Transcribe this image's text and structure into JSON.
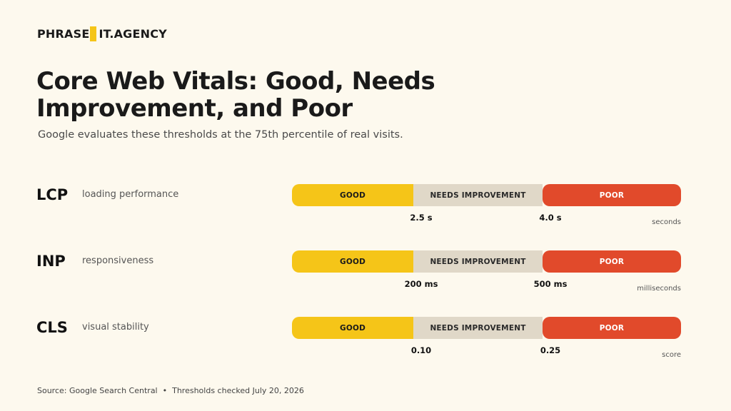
{
  "brand": {
    "name_left": "PHRASE",
    "name_right": "IT.AGENCY",
    "accent_color": "#f5c518"
  },
  "title": "Core Web Vitals: Good, Needs Improvement, and Poor",
  "subtitle": "Google evaluates these thresholds at the 75th percentile of real visits.",
  "segment_labels": {
    "good": "GOOD",
    "needs_improvement": "NEEDS IMPROVEMENT",
    "poor": "POOR"
  },
  "colors": {
    "good": "#f5c518",
    "needs_improvement": "#e0d8c8",
    "poor": "#e14a2b",
    "background": "#fdf9ee"
  },
  "metrics": [
    {
      "abbr": "LCP",
      "description": "loading performance",
      "threshold_good": "2.5 s",
      "threshold_poor": "4.0 s",
      "unit": "seconds"
    },
    {
      "abbr": "INP",
      "description": "responsiveness",
      "threshold_good": "200 ms",
      "threshold_poor": "500 ms",
      "unit": "milliseconds"
    },
    {
      "abbr": "CLS",
      "description": "visual stability",
      "threshold_good": "0.10",
      "threshold_poor": "0.25",
      "unit": "score"
    }
  ],
  "footer": {
    "source": "Source: Google Search Central",
    "separator": "•",
    "checked": "Thresholds checked July 20, 2026"
  }
}
